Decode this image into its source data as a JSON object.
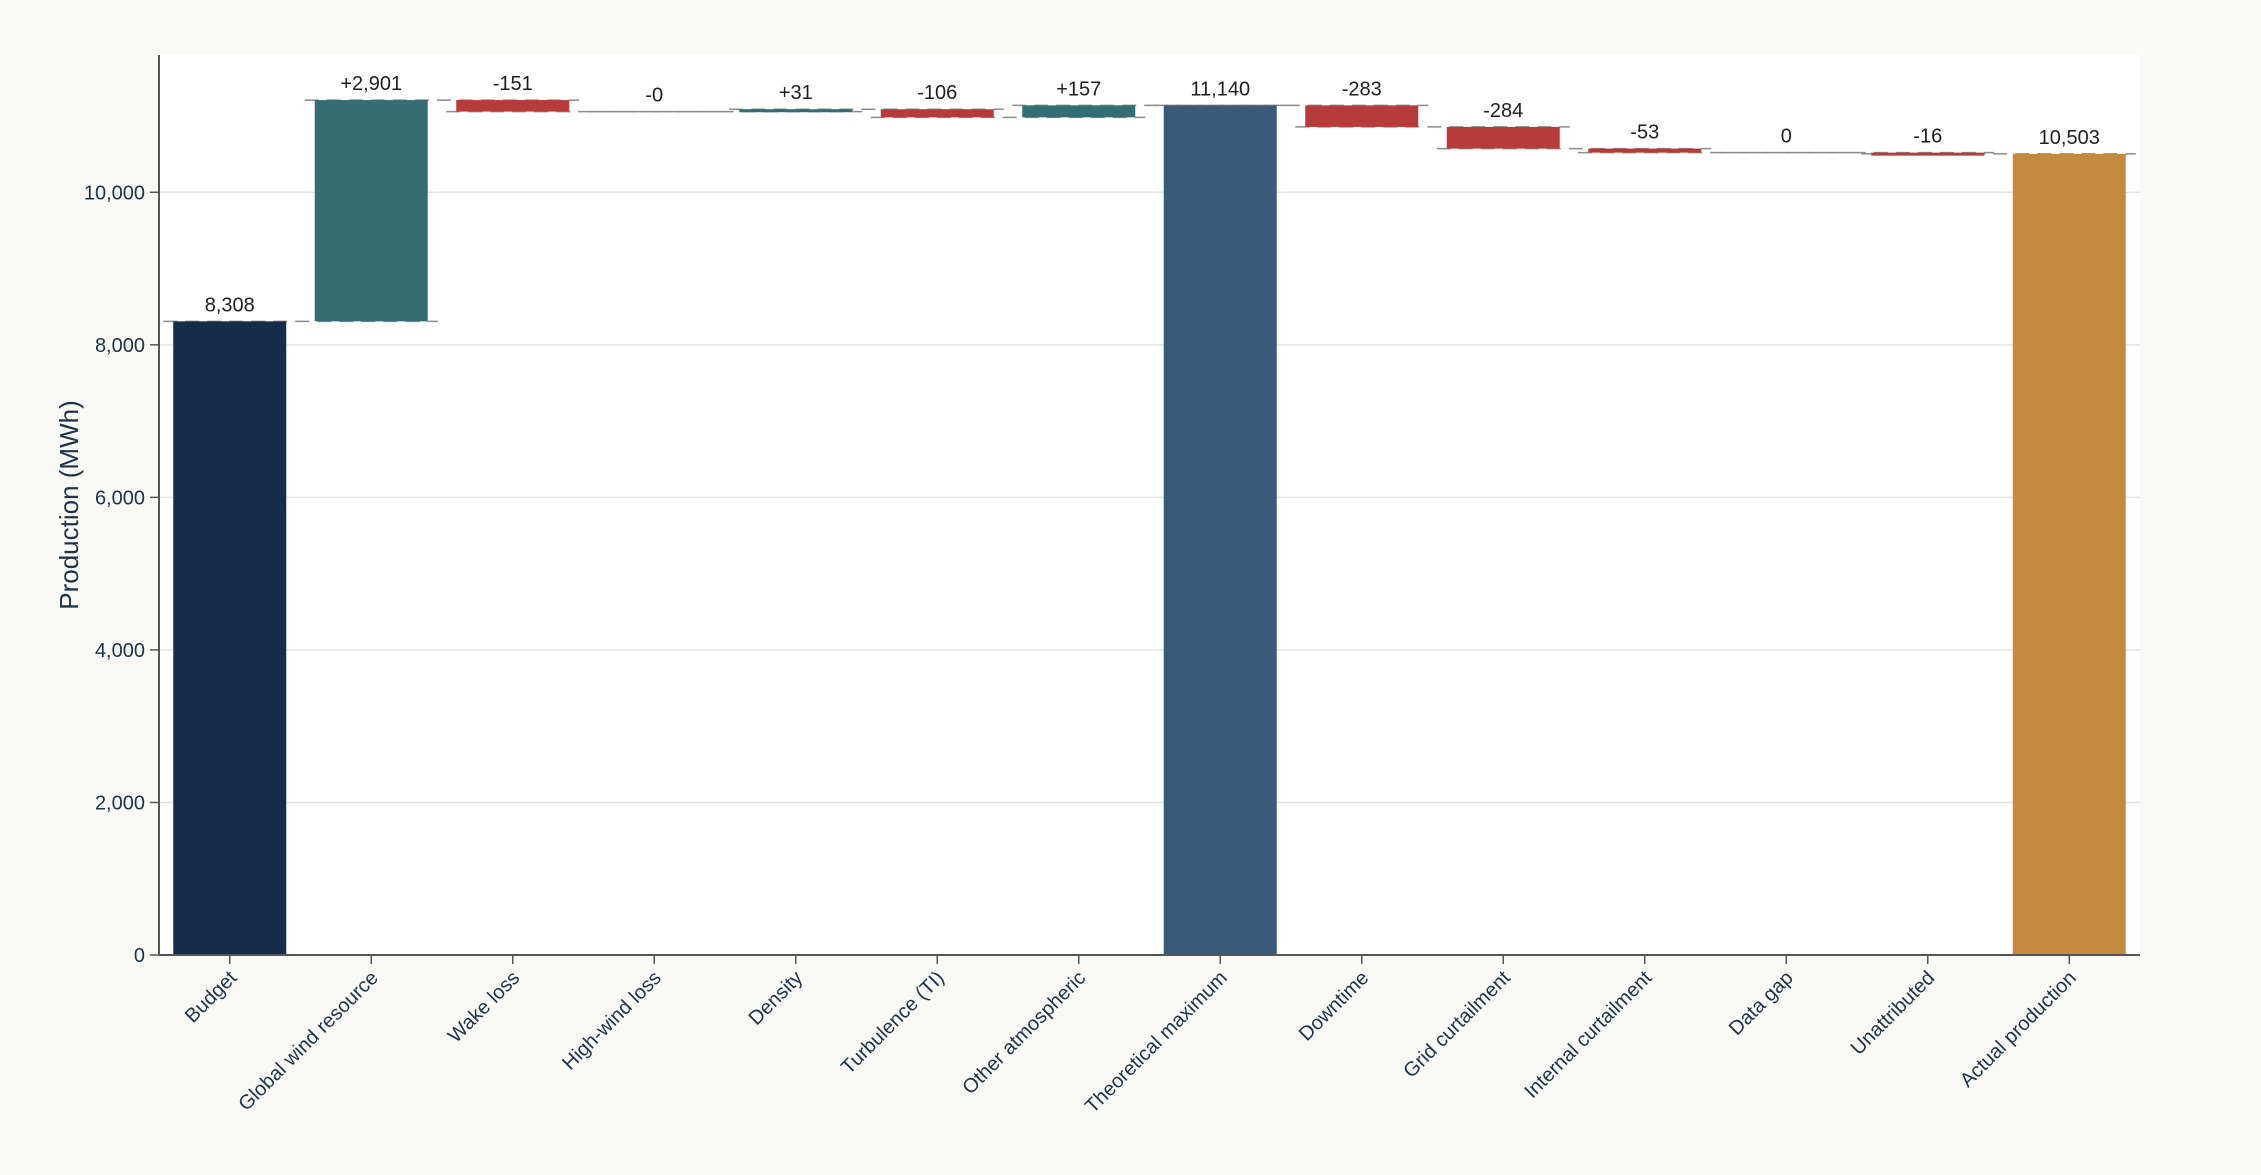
{
  "chart_data": {
    "type": "waterfall",
    "ylabel": "Production (MWh)",
    "ylim": [
      0,
      11800
    ],
    "yticks": [
      0,
      2000,
      4000,
      6000,
      8000,
      10000
    ],
    "grid": true,
    "steps": [
      {
        "category": "Budget",
        "kind": "total",
        "value": 8308,
        "label": "8,308",
        "color": "#162d49"
      },
      {
        "category": "Global wind resource",
        "kind": "delta",
        "value": 2901,
        "label": "+2,901",
        "color": "#346e72"
      },
      {
        "category": "Wake loss",
        "kind": "delta",
        "value": -151,
        "label": "-151",
        "color": "#b83b3b"
      },
      {
        "category": "High-wind loss",
        "kind": "delta",
        "value": 0,
        "label": "-0",
        "color": "#b83b3b"
      },
      {
        "category": "Density",
        "kind": "delta",
        "value": 31,
        "label": "+31",
        "color": "#346e72"
      },
      {
        "category": "Turbulence (TI)",
        "kind": "delta",
        "value": -106,
        "label": "-106",
        "color": "#b83b3b"
      },
      {
        "category": "Other atmospheric",
        "kind": "delta",
        "value": 157,
        "label": "+157",
        "color": "#346e72"
      },
      {
        "category": "Theoretical maximum",
        "kind": "total",
        "value": 11140,
        "label": "11,140",
        "color": "#3b5a79"
      },
      {
        "category": "Downtime",
        "kind": "delta",
        "value": -283,
        "label": "-283",
        "color": "#b83b3b"
      },
      {
        "category": "Grid curtailment",
        "kind": "delta",
        "value": -284,
        "label": "-284",
        "color": "#b83b3b"
      },
      {
        "category": "Internal curtailment",
        "kind": "delta",
        "value": -53,
        "label": "-53",
        "color": "#b83b3b"
      },
      {
        "category": "Data gap",
        "kind": "delta",
        "value": 0,
        "label": "0",
        "color": "#b83b3b"
      },
      {
        "category": "Unattributed",
        "kind": "delta",
        "value": -16,
        "label": "-16",
        "color": "#b83b3b"
      },
      {
        "category": "Actual production",
        "kind": "total",
        "value": 10503,
        "label": "10,503",
        "color": "#c48a3f"
      }
    ]
  }
}
